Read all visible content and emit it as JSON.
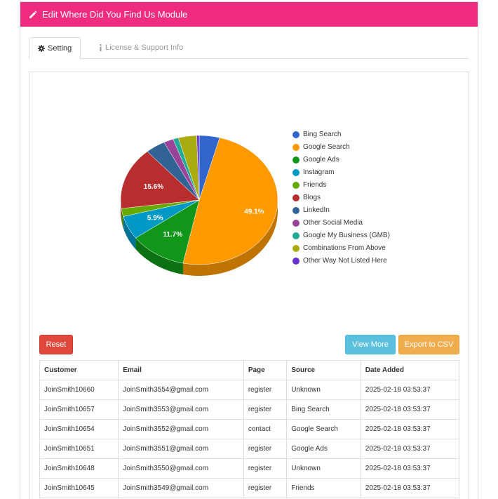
{
  "header": {
    "title": "Edit Where Did You Find Us Module"
  },
  "tabs": [
    {
      "label": "Setting",
      "icon": "gear-icon"
    },
    {
      "label": "License & Support Info",
      "icon": "info-icon"
    }
  ],
  "colors": {
    "header": "#ef2c80",
    "reset": "#e0483d",
    "view_more": "#5bc0de",
    "export": "#f0ad4e"
  },
  "chart_data": {
    "type": "pie",
    "categories": [
      "Bing Search",
      "Google Search",
      "Google Ads",
      "Instagram",
      "Friends",
      "Blogs",
      "LinkedIn",
      "Other Social Media",
      "Google My Business (GMB)",
      "Combinations From Above",
      "Other Way Not Listed Here"
    ],
    "values": [
      4.2,
      49.1,
      11.7,
      5.9,
      2.0,
      15.6,
      4.1,
      2.0,
      1.1,
      3.8,
      0.5
    ],
    "colors": [
      "#3366cc",
      "#ff9900",
      "#109618",
      "#0099c6",
      "#66aa00",
      "#b82e2e",
      "#316395",
      "#994499",
      "#22aa99",
      "#aaaa11",
      "#6633cc"
    ],
    "data_labels": [
      "",
      "49.1%",
      "11.7%",
      "5.9%",
      "",
      "15.6%",
      "",
      "",
      "",
      "",
      ""
    ],
    "legend": "right"
  },
  "buttons": {
    "reset": "Reset",
    "view_more": "View More",
    "export": "Export to CSV"
  },
  "table": {
    "columns": [
      "Customer",
      "Email",
      "Page",
      "Source",
      "Date Added"
    ],
    "rows": [
      [
        "JoinSmith10660",
        "JoinSmith3554@gmail.com",
        "register",
        "Unknown",
        "2025-02-18 03:53:37"
      ],
      [
        "JoinSmith10657",
        "JoinSmith3553@gmail.com",
        "register",
        "Bing Search",
        "2025-02-18 03:53:37"
      ],
      [
        "JoinSmith10654",
        "JoinSmith3552@gmail.com",
        "contact",
        "Google Search",
        "2025-02-18 03:53:37"
      ],
      [
        "JoinSmith10651",
        "JoinSmith3551@gmail.com",
        "register",
        "Google Ads",
        "2025-02-18 03:53:37"
      ],
      [
        "JoinSmith10648",
        "JoinSmith3550@gmail.com",
        "register",
        "Unknown",
        "2025-02-18 03:53:37"
      ],
      [
        "JoinSmith10645",
        "JoinSmith3549@gmail.com",
        "register",
        "Friends",
        "2025-02-18 03:53:37"
      ]
    ]
  }
}
